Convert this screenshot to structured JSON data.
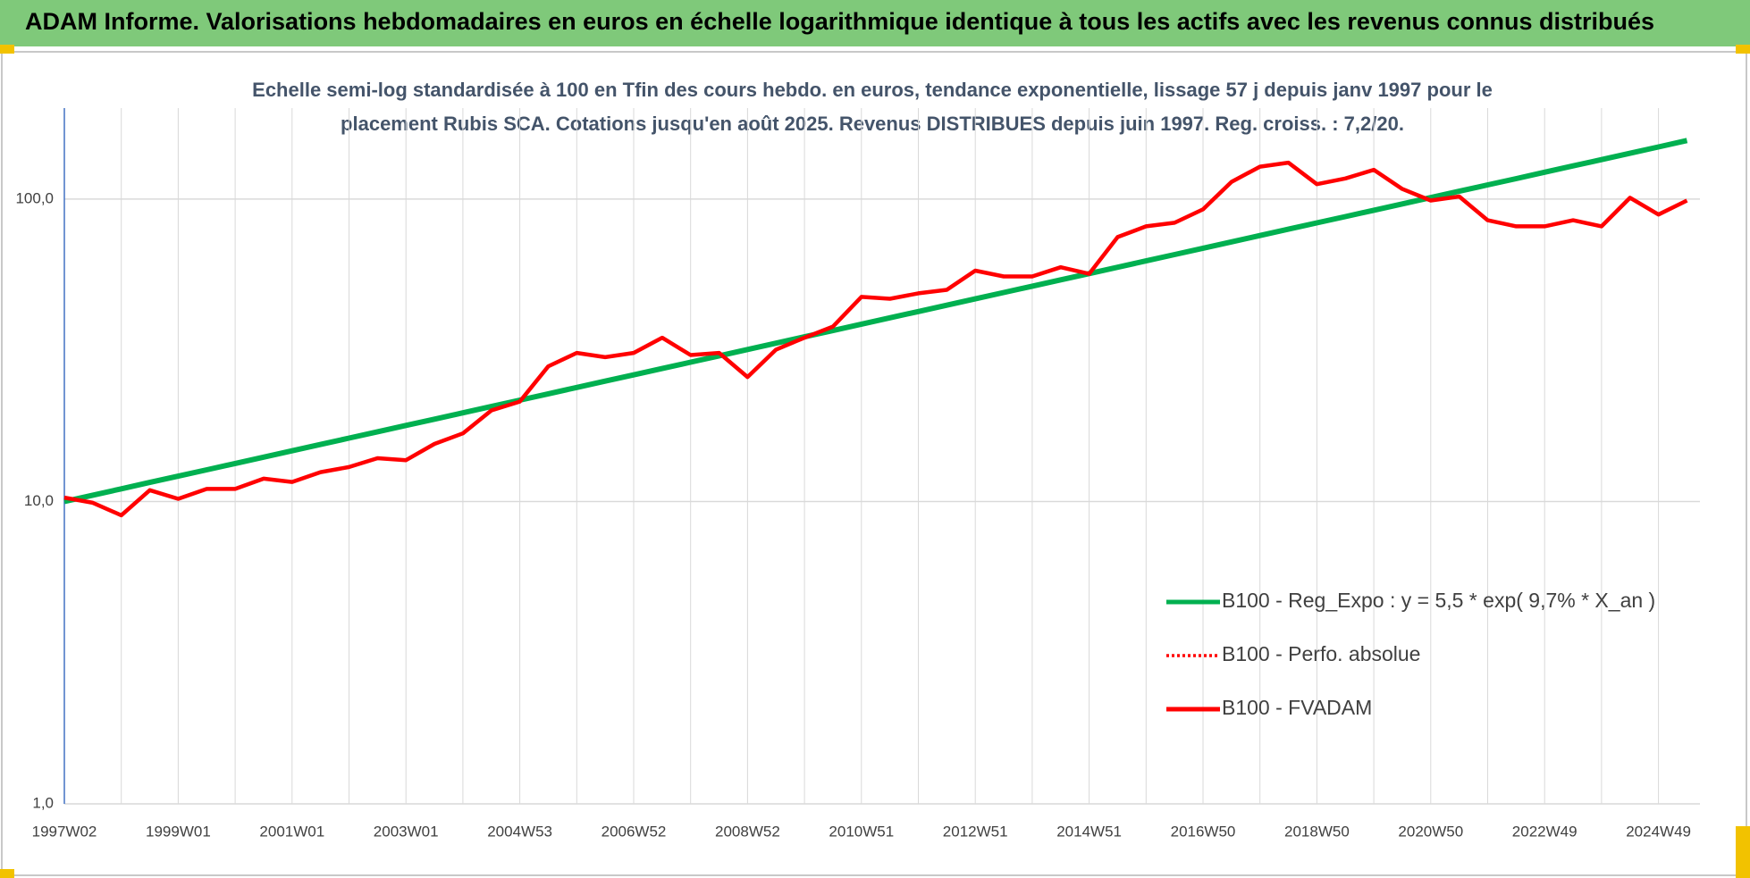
{
  "header": {
    "title": "ADAM Informe. Valorisations hebdomadaires en euros en échelle logarithmique identique à tous les actifs avec les revenus connus distribués"
  },
  "chart_data": {
    "type": "line",
    "subtitle": [
      "Echelle semi-log standardisée à 100 en Tfin des cours hebdo. en euros, tendance exponentielle, lissage 57 j depuis janv 1997 pour le",
      "placement Rubis SCA.  Cotations jusqu'en août 2025.  Revenus DISTRIBUES depuis juin 1997. Reg. croiss. : 7,2/20."
    ],
    "log_y": true,
    "categories": [
      "1997W02",
      null,
      null,
      null,
      "1999W01",
      null,
      null,
      null,
      "2001W01",
      null,
      null,
      null,
      "2003W01",
      null,
      null,
      null,
      "2004W53",
      null,
      null,
      null,
      "2006W52",
      null,
      null,
      null,
      "2008W52",
      null,
      null,
      null,
      "2010W51",
      null,
      null,
      null,
      "2012W51",
      null,
      null,
      null,
      "2014W51",
      null,
      null,
      null,
      "2016W50",
      null,
      null,
      null,
      "2018W50",
      null,
      null,
      null,
      "2020W50",
      null,
      null,
      null,
      "2022W49",
      null,
      null,
      null,
      "2024W49",
      null
    ],
    "ylim": [
      1,
      200
    ],
    "yticks": [
      {
        "value": 1,
        "label": "1,0"
      },
      {
        "value": 10,
        "label": "10,0"
      },
      {
        "value": 100,
        "label": "100,0"
      }
    ],
    "grid": true,
    "legend": "lower right",
    "series": [
      {
        "name": "B100 - Reg_Expo : y = 5,5 * exp( 9,7% *  X_an )",
        "color": "#00b050",
        "style": "solid",
        "values": [
          10.0,
          10.49,
          11.01,
          11.56,
          12.13,
          12.73,
          13.36,
          14.02,
          14.71,
          15.44,
          16.2,
          17.0,
          17.84,
          18.72,
          19.64,
          20.61,
          21.63,
          22.7,
          23.82,
          25.0,
          26.23,
          27.53,
          28.89,
          30.31,
          31.81,
          33.38,
          35.03,
          36.76,
          38.58,
          40.49,
          42.49,
          44.59,
          46.78,
          49.09,
          51.52,
          54.06,
          56.73,
          59.53,
          62.47,
          65.56,
          68.8,
          72.2,
          75.77,
          79.51,
          83.43,
          87.55,
          91.88,
          96.42,
          101.2,
          106.2,
          111.4,
          116.9,
          122.7,
          128.8,
          135.1,
          141.8,
          148.8,
          156.2
        ]
      },
      {
        "name": "B100 - Perfo. absolue",
        "color": "#ff0000",
        "style": "dotted",
        "values": [
          10.3,
          9.9,
          9.0,
          10.9,
          10.2,
          11.0,
          11.0,
          11.9,
          11.6,
          12.5,
          13.0,
          13.9,
          13.7,
          15.5,
          16.8,
          20.0,
          21.4,
          28.0,
          31.0,
          30.0,
          31.0,
          34.8,
          30.5,
          31.0,
          25.8,
          31.8,
          34.8,
          37.9,
          47.5,
          46.8,
          48.8,
          50.1,
          58.0,
          55.5,
          55.5,
          59.5,
          56.6,
          74.9,
          81.3,
          83.5,
          92.5,
          114,
          128,
          132,
          112,
          117,
          125,
          108,
          98.9,
          102,
          85.1,
          81.3,
          81.3,
          85.1,
          81.3,
          101,
          88.9,
          98.9
        ]
      },
      {
        "name": "B100 - FVADAM",
        "color": "#ff0000",
        "style": "solid",
        "values": [
          10.3,
          9.9,
          9.0,
          10.9,
          10.2,
          11.0,
          11.0,
          11.9,
          11.6,
          12.5,
          13.0,
          13.9,
          13.7,
          15.5,
          16.8,
          20.0,
          21.4,
          28.0,
          31.0,
          30.0,
          31.0,
          34.8,
          30.5,
          31.0,
          25.8,
          31.8,
          34.8,
          37.9,
          47.5,
          46.8,
          48.8,
          50.1,
          58.0,
          55.5,
          55.5,
          59.5,
          56.6,
          74.9,
          81.3,
          83.5,
          92.5,
          114,
          128,
          132,
          112,
          117,
          125,
          108,
          98.9,
          102,
          85.1,
          81.3,
          81.3,
          85.1,
          81.3,
          101,
          88.9,
          98.9
        ]
      }
    ]
  }
}
